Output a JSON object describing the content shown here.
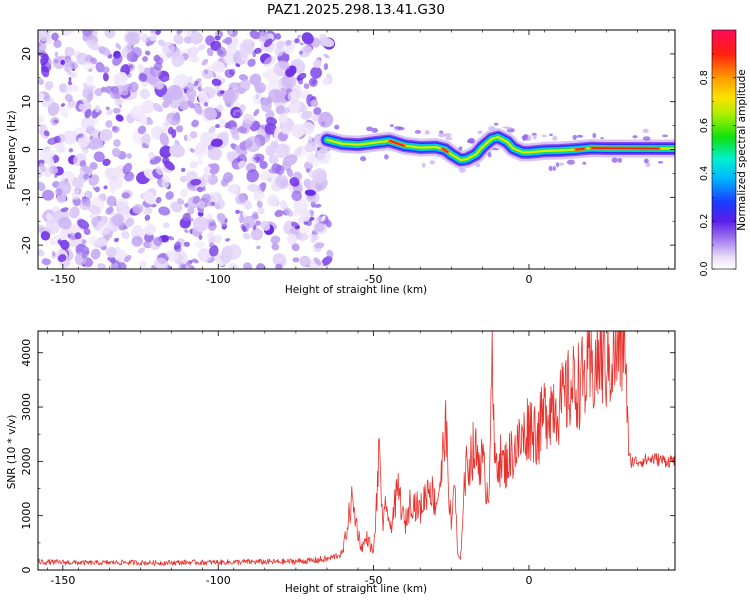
{
  "title": "PAZ1.2025.298.13.41.G30",
  "chart_data": [
    {
      "type": "heatmap",
      "name": "spectrogram",
      "xlabel": "Height of straight line (km)",
      "ylabel": "Frequency (Hz)",
      "xlim": [
        -158,
        47
      ],
      "ylim": [
        -25,
        25
      ],
      "xticks": [
        -150,
        -100,
        -50,
        0
      ],
      "xtick_labels": [
        "-150",
        "-100",
        "-50",
        "0"
      ],
      "yticks": [
        -20,
        -10,
        0,
        10,
        20
      ],
      "ytick_labels": [
        "-20",
        "-10",
        "0",
        "10",
        "20"
      ],
      "noise_region_x": [
        -158,
        -64
      ],
      "signal_ridge": {
        "x": [
          -65,
          -60,
          -55,
          -50,
          -45,
          -40,
          -35,
          -30,
          -27,
          -25,
          -22,
          -20,
          -17,
          -15,
          -12,
          -10,
          -7,
          -5,
          -2,
          0,
          5,
          10,
          15,
          20,
          25,
          30,
          35,
          40,
          47
        ],
        "y": [
          2.0,
          1.2,
          1.0,
          1.4,
          1.8,
          0.8,
          0.4,
          0.5,
          0.0,
          -1.0,
          -2.2,
          -2.0,
          -1.0,
          0.5,
          2.2,
          2.6,
          1.6,
          0.2,
          -0.6,
          -0.6,
          -0.3,
          -0.2,
          0.0,
          0.3,
          0.2,
          0.2,
          0.2,
          0.2,
          0.2
        ],
        "peak_amplitude_x": [
          [
            -45,
            -40
          ],
          [
            -28,
            -26
          ],
          [
            15,
            18
          ],
          [
            20,
            42
          ]
        ]
      },
      "colorbar": {
        "label": "Normalized spectral amplitude",
        "range": [
          0,
          1
        ],
        "ticks": [
          0.0,
          0.2,
          0.4,
          0.6,
          0.8
        ],
        "tick_labels": [
          "0.0",
          "0.2",
          "0.4",
          "0.6",
          "0.8"
        ]
      }
    },
    {
      "type": "line",
      "name": "snr",
      "xlabel": "Height of straight line (km)",
      "ylabel": "SNR (10 * v/v)",
      "xlim": [
        -158,
        47
      ],
      "ylim": [
        0,
        4400
      ],
      "xticks": [
        -150,
        -100,
        -50,
        0
      ],
      "xtick_labels": [
        "-150",
        "-100",
        "-50",
        "0"
      ],
      "yticks": [
        0,
        1000,
        2000,
        3000,
        4000
      ],
      "ytick_labels": [
        "0",
        "1000",
        "2000",
        "3000",
        "4000"
      ],
      "series": [
        {
          "name": "SNR",
          "color": "#e8322d",
          "x": [
            -158,
            -150,
            -140,
            -130,
            -120,
            -110,
            -100,
            -90,
            -80,
            -70,
            -65,
            -60,
            -57,
            -55,
            -54,
            -52,
            -50,
            -48,
            -47,
            -46,
            -45,
            -42,
            -40,
            -38,
            -35,
            -32,
            -30,
            -28,
            -27,
            -25,
            -24,
            -23,
            -22,
            -21,
            -20,
            -18,
            -15,
            -13,
            -12,
            -11,
            -10,
            -8,
            -5,
            -2,
            0,
            3,
            5,
            8,
            10,
            13,
            15,
            18,
            20,
            23,
            25,
            28,
            30,
            31,
            32,
            33,
            35,
            40,
            45,
            47
          ],
          "values": [
            150,
            140,
            130,
            140,
            130,
            140,
            140,
            150,
            150,
            170,
            200,
            300,
            1300,
            700,
            400,
            600,
            300,
            2300,
            600,
            1400,
            700,
            1500,
            800,
            1300,
            1100,
            1600,
            1200,
            1800,
            2800,
            700,
            1800,
            300,
            150,
            1500,
            1900,
            2200,
            2000,
            1300,
            3950,
            1900,
            2100,
            1900,
            2200,
            2400,
            2700,
            2500,
            2900,
            3100,
            3000,
            3300,
            3400,
            3500,
            3600,
            3900,
            3800,
            3950,
            4100,
            4350,
            2100,
            2000,
            2000,
            2050,
            2000,
            2050
          ]
        }
      ]
    }
  ]
}
